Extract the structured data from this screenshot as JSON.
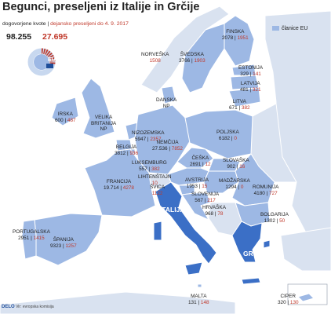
{
  "title": "Begunci, preseljeni iz Italije in Grčije",
  "legend": {
    "quota_label": "dogovorjene kvote",
    "separator": "|",
    "relocated_label": "dejansko preseljeni do 4. 9. 2017",
    "members_label": "članice EU"
  },
  "totals": {
    "quota": "98.255",
    "relocated": "27.695",
    "relocated_fraction": 0.282
  },
  "eu_badge": "EU",
  "highlight": {
    "italy": "ITALIJA",
    "greece": "GRČIJA"
  },
  "colors": {
    "sea": "#ffffff",
    "eu_member": "#9db8e4",
    "non_member": "#d9e2f0",
    "highlight": "#3b6fc6",
    "border": "#ffffff",
    "quota_blue": "#2a5caa",
    "relocated_red": "#c0392b"
  },
  "countries": [
    {
      "id": "finska",
      "name": "FINSKA",
      "quota": "2078",
      "relocated": "1951"
    },
    {
      "id": "svedska",
      "name": "ŠVEDSKA",
      "quota": "3766",
      "relocated": "1903"
    },
    {
      "id": "norveska",
      "name": "NORVEŠKA",
      "quota": "",
      "relocated": "1508"
    },
    {
      "id": "estonija",
      "name": "ESTONIJA",
      "quota": "329",
      "relocated": "141"
    },
    {
      "id": "latvija",
      "name": "LATVIJA",
      "quota": "481",
      "relocated": "321"
    },
    {
      "id": "litva",
      "name": "LITVA",
      "quota": "671",
      "relocated": "382"
    },
    {
      "id": "danska",
      "name": "DANSKA",
      "note": "NP",
      "quota": "",
      "relocated": ""
    },
    {
      "id": "irska",
      "name": "IRSKA",
      "quota": "600",
      "relocated": "487"
    },
    {
      "id": "velika-britanija",
      "name": "VELIKA",
      "name2": "BRITANIJA",
      "note": "NP",
      "quota": "",
      "relocated": ""
    },
    {
      "id": "nizozemska",
      "name": "NIZOZEMSKA",
      "quota": "5947",
      "relocated": "2357"
    },
    {
      "id": "nemcija",
      "name": "NEMČIJA",
      "quota": "27.536",
      "relocated": "7852"
    },
    {
      "id": "poljska",
      "name": "POLJSKA",
      "quota": "6182",
      "relocated": "0"
    },
    {
      "id": "belgija",
      "name": "BELGIJA",
      "quota": "3812",
      "relocated": "936"
    },
    {
      "id": "luksemburg",
      "name": "LUKSEMBURG",
      "quota": "557",
      "relocated": "382"
    },
    {
      "id": "ceska",
      "name": "ČEŠKA",
      "quota": "2691",
      "relocated": "12"
    },
    {
      "id": "slovaska",
      "name": "SLOVAŠKA",
      "quota": "902",
      "relocated": "16"
    },
    {
      "id": "francija",
      "name": "FRANCIJA",
      "quota": "19.714",
      "relocated": "4278"
    },
    {
      "id": "lihtenstajn",
      "name": "LIHTENŠTAJN",
      "quota": "",
      "relocated": "10"
    },
    {
      "id": "svica",
      "name": "ŠVICA",
      "quota": "",
      "relocated": "1122"
    },
    {
      "id": "avstrija",
      "name": "AVSTRIJA",
      "quota": "1953",
      "relocated": "15"
    },
    {
      "id": "madzarska",
      "name": "MADŽARSKA",
      "quota": "1294",
      "relocated": "0"
    },
    {
      "id": "romunija",
      "name": "ROMUNIJA",
      "quota": "4180",
      "relocated": "727"
    },
    {
      "id": "slovenija",
      "name": "SLOVENIJA",
      "quota": "567",
      "relocated": "217"
    },
    {
      "id": "hrvaska",
      "name": "HRVAŠKA",
      "quota": "968",
      "relocated": "78"
    },
    {
      "id": "bolgarija",
      "name": "BOLGARIJA",
      "quota": "1302",
      "relocated": "50"
    },
    {
      "id": "portugalska",
      "name": "PORTUGALSKA",
      "quota": "2951",
      "relocated": "1415"
    },
    {
      "id": "spanija",
      "name": "ŠPANIJA",
      "quota": "9323",
      "relocated": "1257"
    },
    {
      "id": "malta",
      "name": "MALTA",
      "quota": "131",
      "relocated": "148"
    },
    {
      "id": "ciper",
      "name": "CIPER",
      "quota": "320",
      "relocated": "130"
    }
  ],
  "footer": {
    "brand": "DELO",
    "source": "Vir: evropska komisija"
  }
}
